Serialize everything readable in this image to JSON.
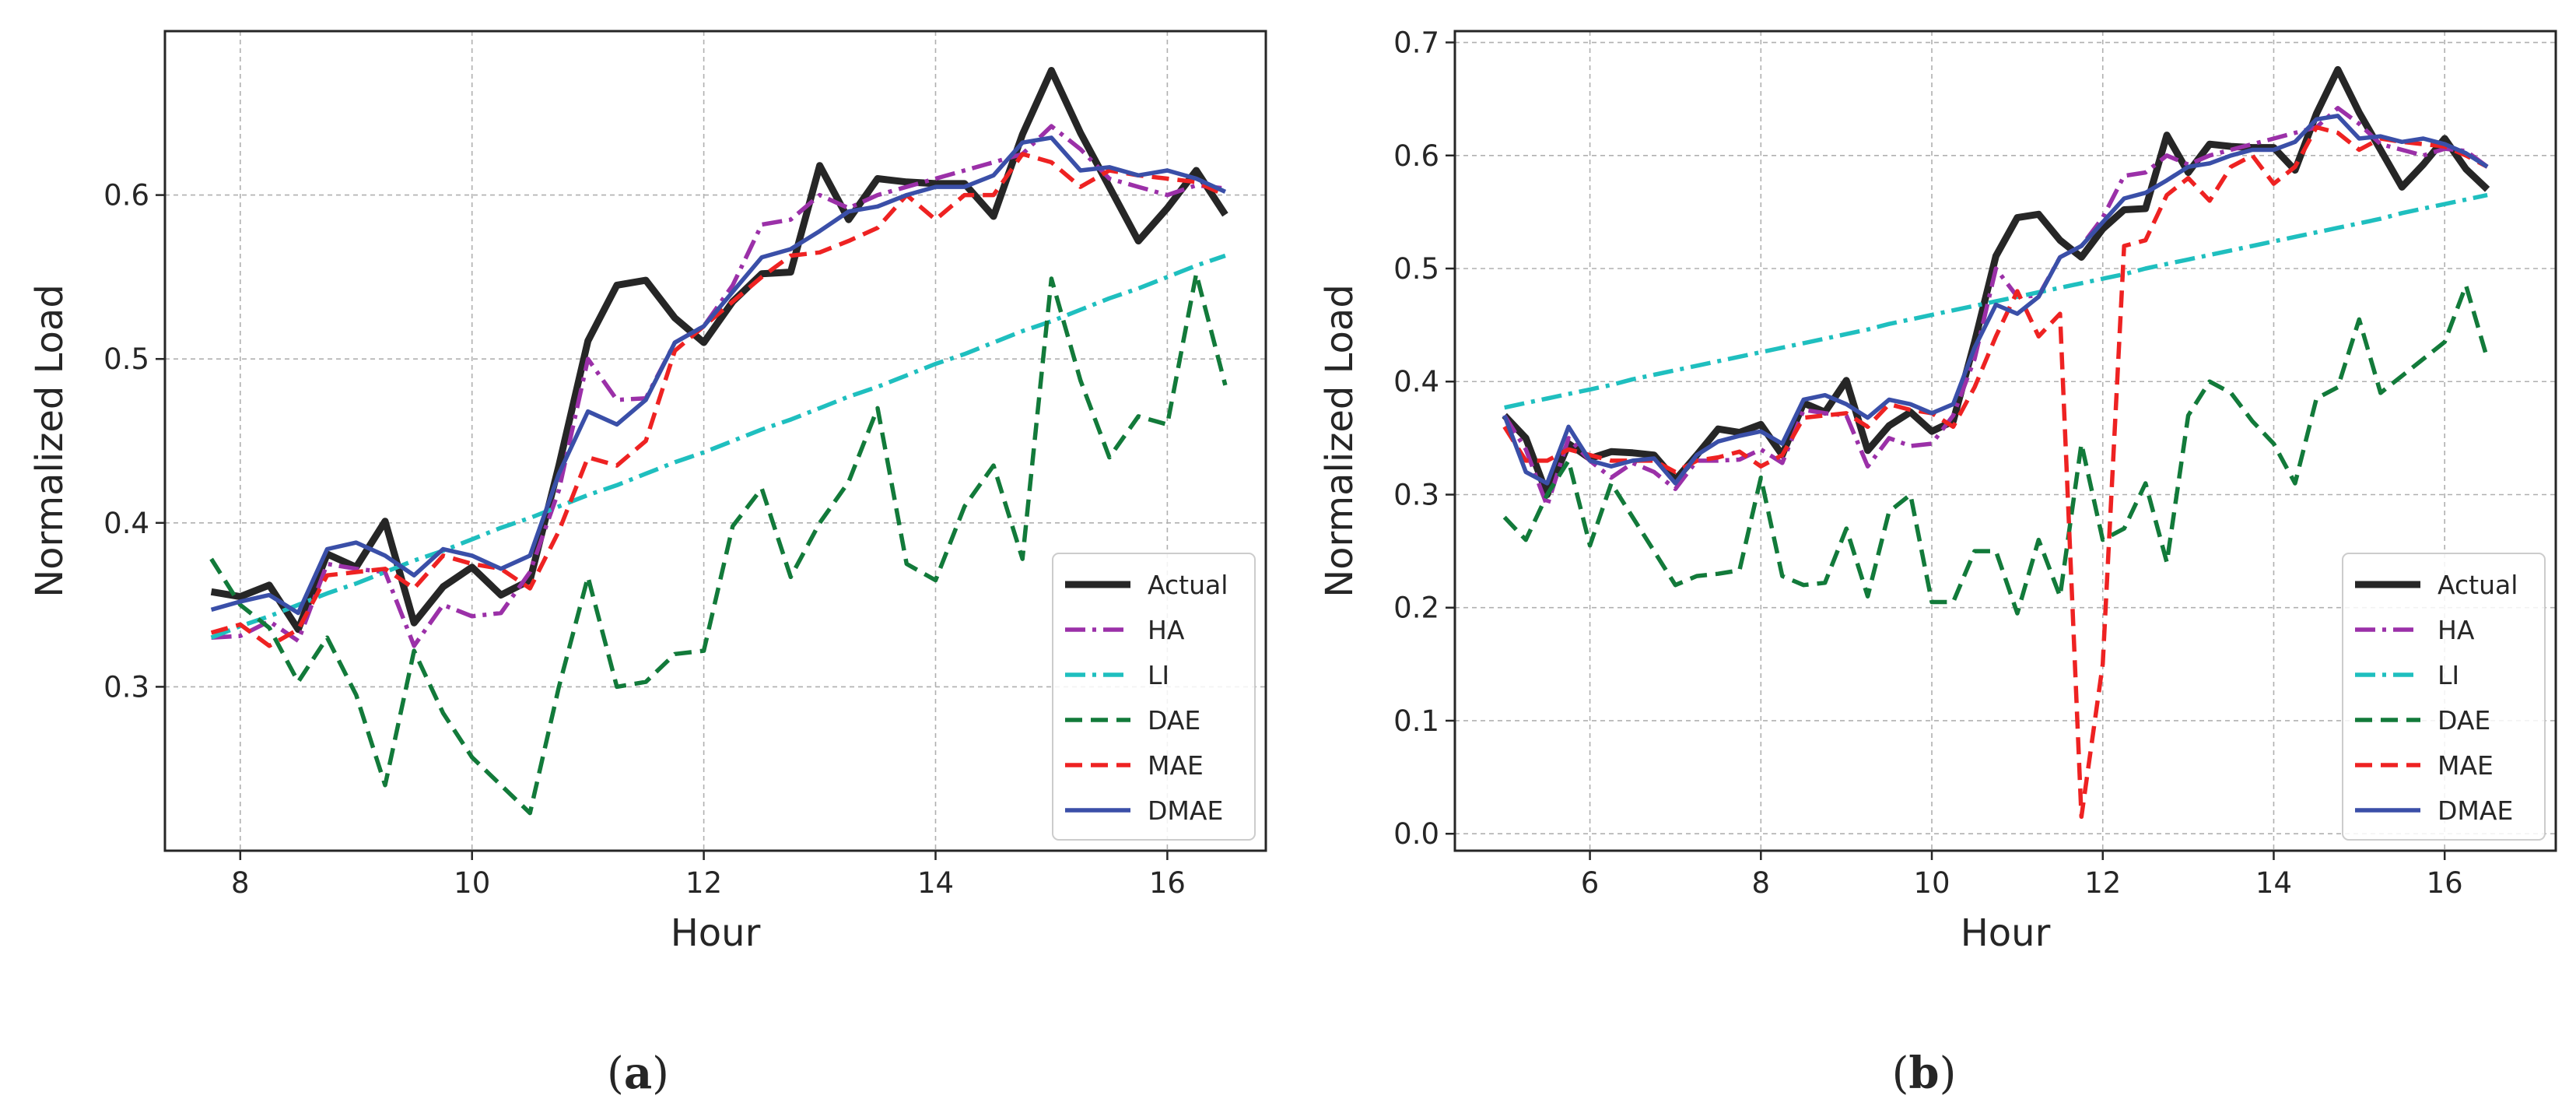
{
  "styles": {
    "Actual": {
      "color": "#262626",
      "dash": "solid",
      "weight": "heavy"
    },
    "HA": {
      "color": "#9b30a8",
      "dash": "dashdot",
      "weight": "normal"
    },
    "LI": {
      "color": "#1fbfbf",
      "dash": "dashdot",
      "weight": "normal"
    },
    "DAE": {
      "color": "#127a3a",
      "dash": "dashed",
      "weight": "normal"
    },
    "MAE": {
      "color": "#ee2222",
      "dash": "dashed",
      "weight": "normal"
    },
    "DMAE": {
      "color": "#3a4fa8",
      "dash": "solid",
      "weight": "normal"
    }
  },
  "chart_data": [
    {
      "type": "line",
      "caption_letter": "a",
      "xlabel": "Hour",
      "ylabel": "Normalized Load",
      "xlim": [
        7.35,
        16.85
      ],
      "ylim": [
        0.2,
        0.7
      ],
      "xticks": [
        8,
        10,
        12,
        14,
        16
      ],
      "yticks": [
        0.3,
        0.4,
        0.5,
        0.6
      ],
      "ytick_labels": [
        "0.3",
        "0.4",
        "0.5",
        "0.6"
      ],
      "grid": true,
      "legend_location": "lower-right",
      "x_start": 7.75,
      "x_step": 0.25,
      "series": [
        {
          "name": "Actual",
          "values": [
            0.358,
            0.355,
            0.362,
            0.335,
            0.381,
            0.373,
            0.401,
            0.339,
            0.361,
            0.373,
            0.356,
            0.365,
            0.435,
            0.511,
            0.545,
            0.548,
            0.525,
            0.51,
            0.535,
            0.552,
            0.553,
            0.618,
            0.585,
            0.61,
            0.608,
            0.607,
            0.607,
            0.587,
            0.637,
            0.676,
            0.638,
            0.605,
            0.572,
            0.592,
            0.615,
            0.588
          ]
        },
        {
          "name": "HA",
          "values": [
            0.33,
            0.331,
            0.34,
            0.328,
            0.375,
            0.372,
            0.37,
            0.325,
            0.35,
            0.343,
            0.345,
            0.37,
            0.42,
            0.5,
            0.475,
            0.476,
            0.51,
            0.52,
            0.545,
            0.582,
            0.585,
            0.6,
            0.592,
            0.6,
            0.605,
            0.61,
            0.615,
            0.62,
            0.625,
            0.642,
            0.628,
            0.61,
            0.605,
            0.6,
            0.606,
            0.604
          ]
        },
        {
          "name": "LI",
          "values": [
            0.33,
            0.337,
            0.343,
            0.35,
            0.357,
            0.363,
            0.37,
            0.377,
            0.383,
            0.39,
            0.397,
            0.403,
            0.41,
            0.417,
            0.423,
            0.43,
            0.437,
            0.443,
            0.45,
            0.457,
            0.463,
            0.47,
            0.477,
            0.483,
            0.49,
            0.497,
            0.503,
            0.51,
            0.517,
            0.523,
            0.53,
            0.537,
            0.543,
            0.55,
            0.557,
            0.563
          ]
        },
        {
          "name": "DAE",
          "values": [
            0.378,
            0.35,
            0.336,
            0.303,
            0.33,
            0.295,
            0.24,
            0.322,
            0.284,
            0.257,
            0.24,
            0.223,
            0.3,
            0.367,
            0.3,
            0.303,
            0.32,
            0.322,
            0.398,
            0.421,
            0.367,
            0.4,
            0.425,
            0.47,
            0.375,
            0.365,
            0.41,
            0.435,
            0.378,
            0.549,
            0.487,
            0.44,
            0.465,
            0.46,
            0.552,
            0.484
          ]
        },
        {
          "name": "MAE",
          "values": [
            0.333,
            0.338,
            0.325,
            0.335,
            0.368,
            0.37,
            0.372,
            0.36,
            0.38,
            0.375,
            0.372,
            0.36,
            0.395,
            0.44,
            0.435,
            0.45,
            0.505,
            0.52,
            0.535,
            0.55,
            0.563,
            0.565,
            0.572,
            0.58,
            0.6,
            0.585,
            0.6,
            0.6,
            0.625,
            0.62,
            0.605,
            0.615,
            0.612,
            0.61,
            0.608,
            0.6
          ]
        },
        {
          "name": "DMAE",
          "values": [
            0.347,
            0.352,
            0.356,
            0.345,
            0.384,
            0.388,
            0.38,
            0.368,
            0.384,
            0.38,
            0.372,
            0.38,
            0.43,
            0.468,
            0.46,
            0.475,
            0.51,
            0.52,
            0.541,
            0.562,
            0.567,
            0.578,
            0.59,
            0.593,
            0.6,
            0.605,
            0.605,
            0.612,
            0.632,
            0.635,
            0.615,
            0.617,
            0.612,
            0.615,
            0.61,
            0.602
          ]
        }
      ]
    },
    {
      "type": "line",
      "caption_letter": "b",
      "xlabel": "Hour",
      "ylabel": "Normalized Load",
      "xlim": [
        4.42,
        17.3
      ],
      "ylim": [
        -0.015,
        0.71
      ],
      "xticks": [
        6,
        8,
        10,
        12,
        14,
        16
      ],
      "yticks": [
        0.0,
        0.1,
        0.2,
        0.3,
        0.4,
        0.5,
        0.6,
        0.7
      ],
      "ytick_labels": [
        "0.0",
        "0.1",
        "0.2",
        "0.3",
        "0.4",
        "0.5",
        "0.6",
        "0.7"
      ],
      "grid": true,
      "legend_location": "lower-right",
      "x_start": 5.0,
      "x_step": 0.25,
      "series": [
        {
          "name": "Actual",
          "values": [
            0.37,
            0.35,
            0.3,
            0.345,
            0.332,
            0.338,
            0.337,
            0.335,
            0.313,
            0.335,
            0.358,
            0.355,
            0.362,
            0.335,
            0.381,
            0.373,
            0.401,
            0.339,
            0.361,
            0.373,
            0.356,
            0.365,
            0.435,
            0.511,
            0.545,
            0.548,
            0.525,
            0.51,
            0.535,
            0.552,
            0.553,
            0.618,
            0.585,
            0.61,
            0.608,
            0.607,
            0.607,
            0.587,
            0.637,
            0.676,
            0.638,
            0.605,
            0.572,
            0.592,
            0.615,
            0.588,
            0.57
          ]
        },
        {
          "name": "HA",
          "values": [
            0.37,
            0.34,
            0.29,
            0.35,
            0.33,
            0.315,
            0.328,
            0.32,
            0.305,
            0.33,
            0.33,
            0.331,
            0.34,
            0.328,
            0.375,
            0.372,
            0.37,
            0.325,
            0.35,
            0.343,
            0.345,
            0.37,
            0.42,
            0.5,
            0.475,
            0.476,
            0.51,
            0.52,
            0.545,
            0.582,
            0.585,
            0.6,
            0.592,
            0.6,
            0.605,
            0.61,
            0.615,
            0.62,
            0.625,
            0.642,
            0.628,
            0.61,
            0.605,
            0.6,
            0.606,
            0.604,
            0.59
          ]
        },
        {
          "name": "LI",
          "values": [
            0.377,
            0.381,
            0.385,
            0.389,
            0.393,
            0.397,
            0.402,
            0.406,
            0.41,
            0.414,
            0.418,
            0.422,
            0.426,
            0.43,
            0.434,
            0.438,
            0.442,
            0.446,
            0.451,
            0.455,
            0.459,
            0.463,
            0.467,
            0.471,
            0.475,
            0.479,
            0.483,
            0.487,
            0.491,
            0.495,
            0.5,
            0.504,
            0.508,
            0.512,
            0.516,
            0.52,
            0.524,
            0.528,
            0.532,
            0.536,
            0.54,
            0.544,
            0.549,
            0.553,
            0.557,
            0.561,
            0.565
          ]
        },
        {
          "name": "DAE",
          "values": [
            0.28,
            0.26,
            0.3,
            0.33,
            0.255,
            0.31,
            0.28,
            0.25,
            0.22,
            0.228,
            0.23,
            0.233,
            0.315,
            0.228,
            0.22,
            0.222,
            0.27,
            0.21,
            0.285,
            0.3,
            0.205,
            0.205,
            0.25,
            0.25,
            0.195,
            0.26,
            0.21,
            0.345,
            0.26,
            0.27,
            0.31,
            0.24,
            0.37,
            0.4,
            0.39,
            0.365,
            0.345,
            0.31,
            0.385,
            0.395,
            0.455,
            0.39,
            0.405,
            0.42,
            0.435,
            0.485,
            0.42
          ]
        },
        {
          "name": "MAE",
          "values": [
            0.36,
            0.33,
            0.33,
            0.34,
            0.335,
            0.33,
            0.33,
            0.33,
            0.32,
            0.33,
            0.333,
            0.338,
            0.325,
            0.335,
            0.368,
            0.37,
            0.372,
            0.36,
            0.38,
            0.375,
            0.372,
            0.36,
            0.395,
            0.44,
            0.48,
            0.44,
            0.46,
            0.015,
            0.15,
            0.52,
            0.525,
            0.565,
            0.58,
            0.56,
            0.59,
            0.6,
            0.575,
            0.59,
            0.625,
            0.62,
            0.605,
            0.615,
            0.612,
            0.61,
            0.608,
            0.6,
            0.59
          ]
        },
        {
          "name": "DMAE",
          "values": [
            0.37,
            0.32,
            0.31,
            0.36,
            0.33,
            0.325,
            0.33,
            0.332,
            0.31,
            0.335,
            0.347,
            0.352,
            0.356,
            0.345,
            0.384,
            0.388,
            0.38,
            0.368,
            0.384,
            0.38,
            0.372,
            0.38,
            0.43,
            0.468,
            0.46,
            0.475,
            0.51,
            0.52,
            0.541,
            0.562,
            0.567,
            0.578,
            0.59,
            0.593,
            0.6,
            0.605,
            0.605,
            0.612,
            0.632,
            0.635,
            0.615,
            0.617,
            0.612,
            0.615,
            0.61,
            0.602,
            0.59
          ]
        }
      ]
    }
  ]
}
